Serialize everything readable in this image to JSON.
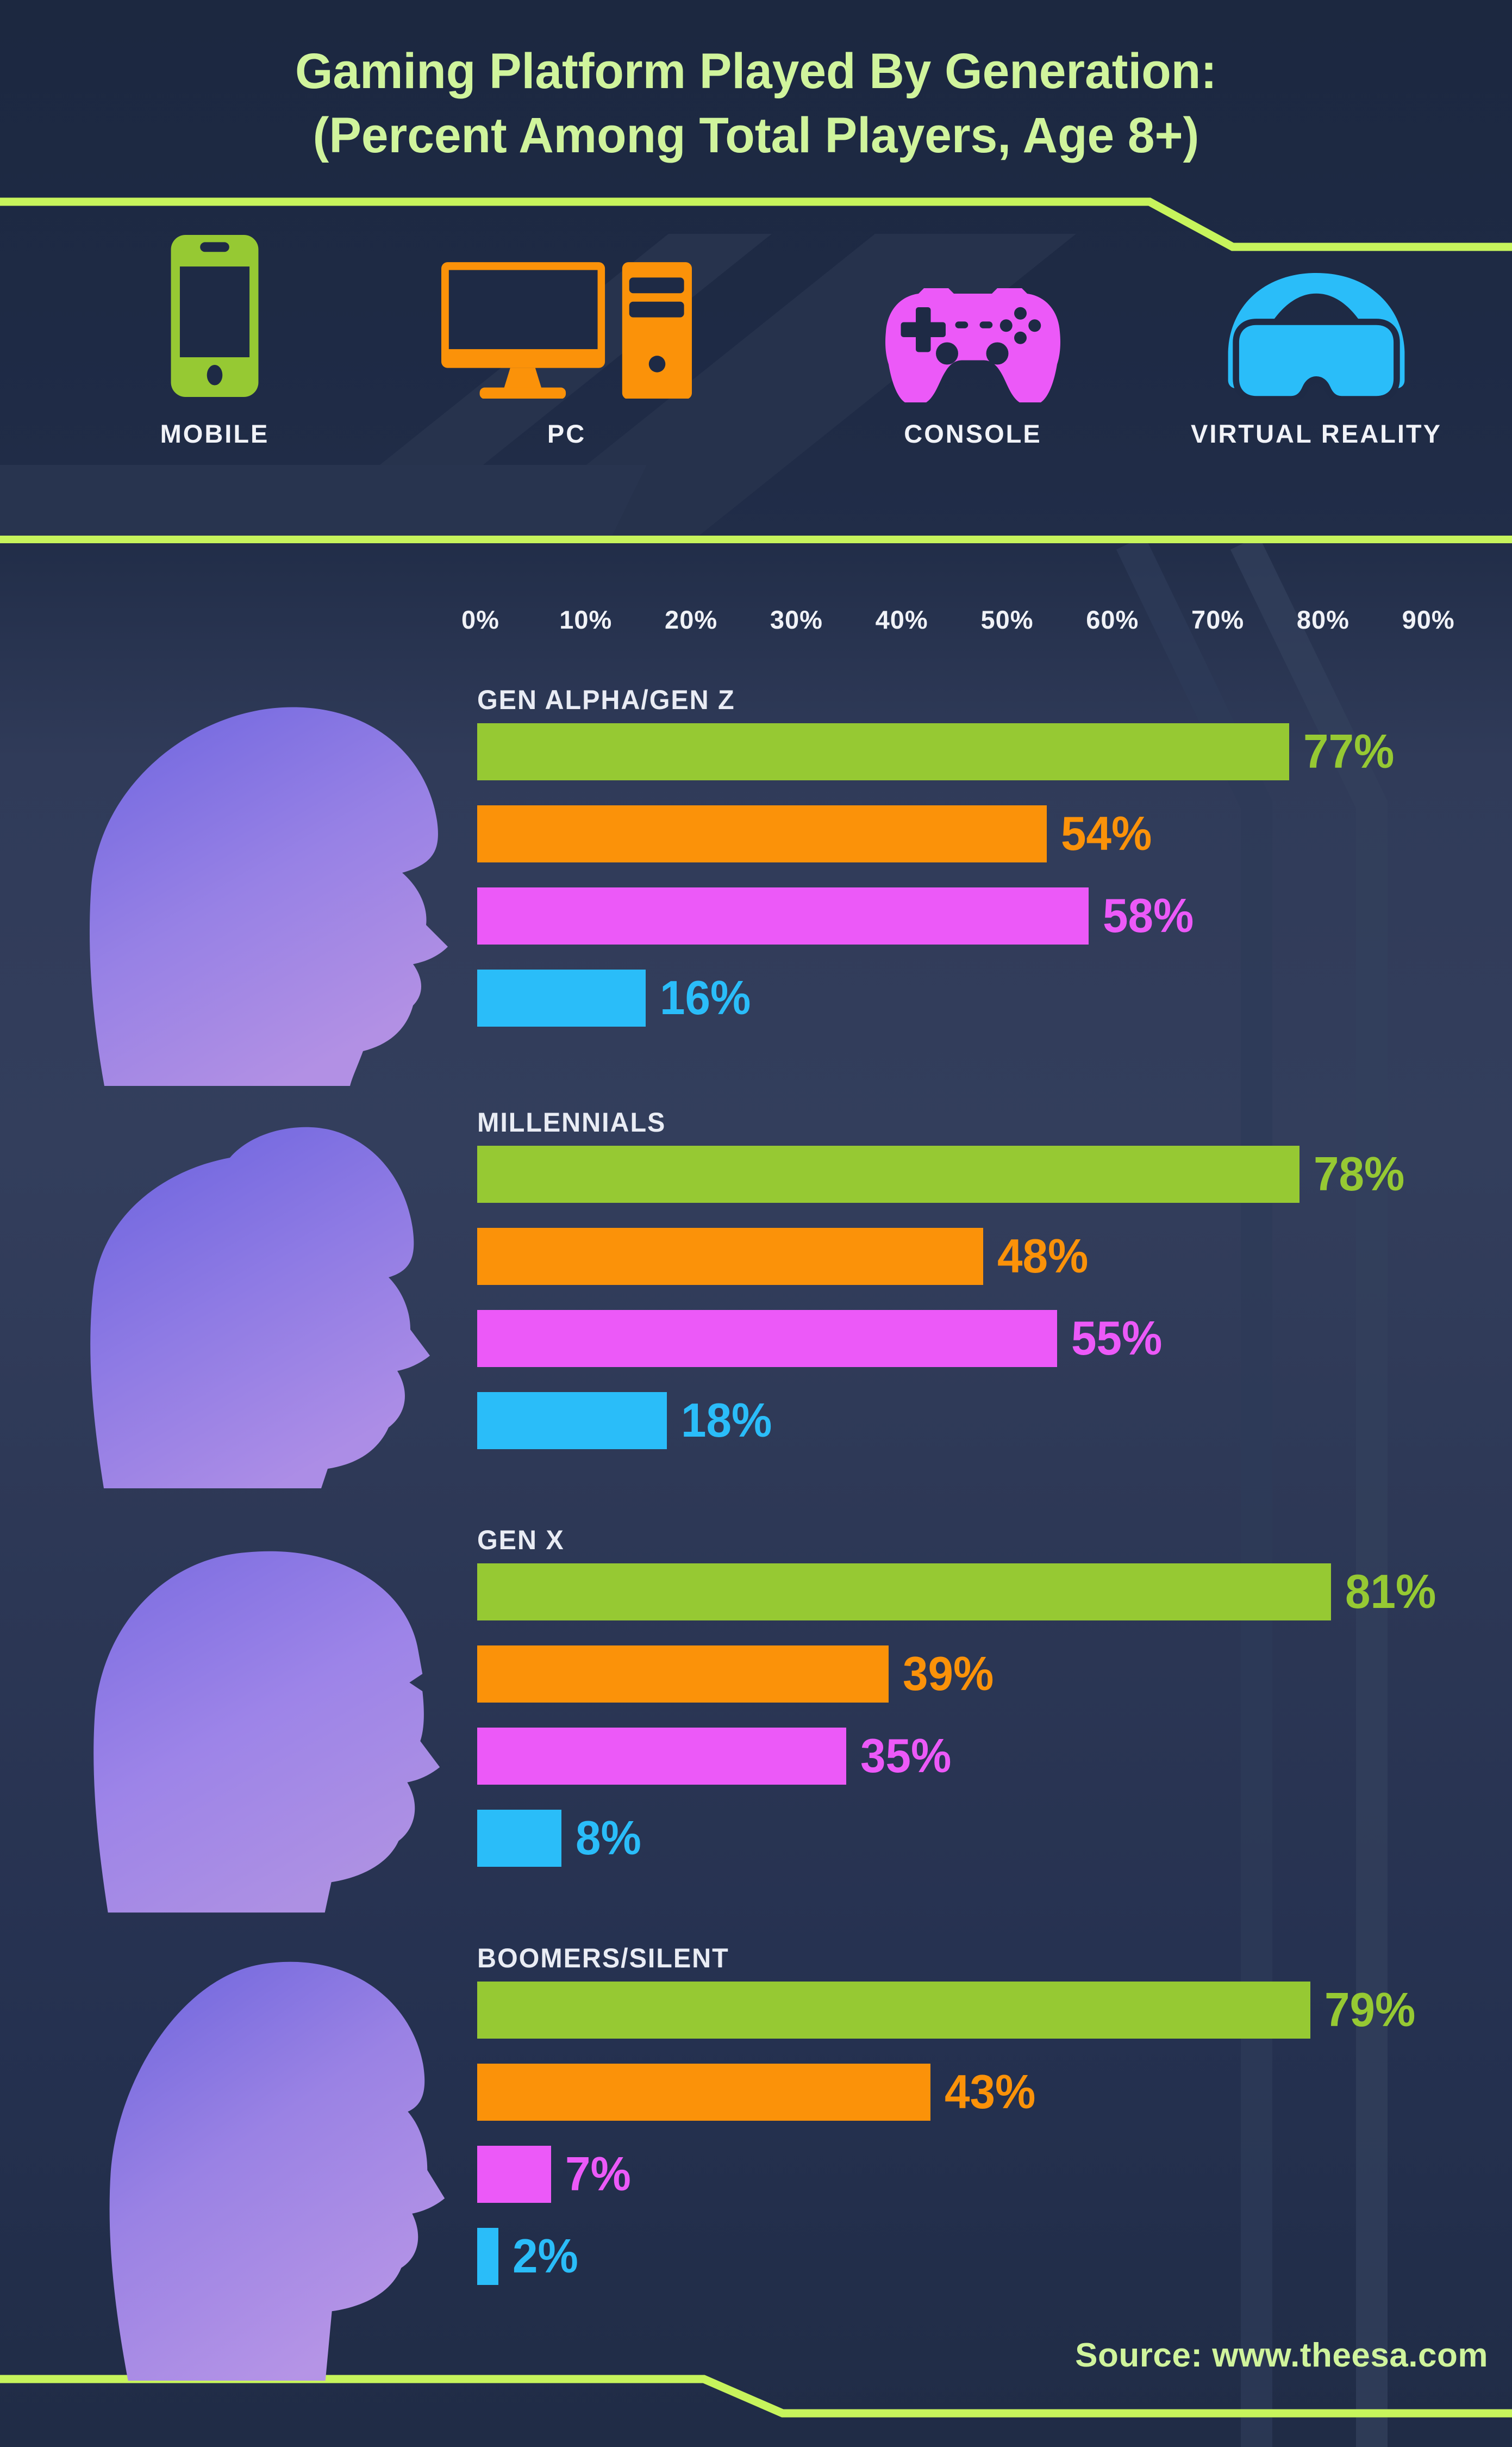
{
  "title": {
    "line1": "Gaming Platform Played By Generation:",
    "line2": "(Percent Among Total Players, Age 8+)"
  },
  "chart_data": {
    "type": "bar",
    "orientation": "horizontal",
    "title": "Gaming Platform Played By Generation: (Percent Among Total Players, Age 8+)",
    "xlabel": "",
    "ylabel": "",
    "xlim": [
      0,
      90
    ],
    "grid": false,
    "legend_position": "top",
    "axis_ticks": [
      "0%",
      "10%",
      "20%",
      "30%",
      "40%",
      "50%",
      "60%",
      "70%",
      "80%",
      "90%"
    ],
    "platforms": [
      {
        "name": "MOBILE",
        "icon": "mobile-phone-icon",
        "color": "#96C933"
      },
      {
        "name": "PC",
        "icon": "desktop-pc-icon",
        "color": "#FB9209"
      },
      {
        "name": "CONSOLE",
        "icon": "gamepad-icon",
        "color": "#EC59F8"
      },
      {
        "name": "VIRTUAL REALITY",
        "icon": "vr-headset-icon",
        "color": "#2ABDF9"
      }
    ],
    "groups": [
      {
        "label": "GEN ALPHA/GEN Z",
        "values": [
          77,
          54,
          58,
          16
        ],
        "value_labels": [
          "77%",
          "54%",
          "58%",
          "16%"
        ]
      },
      {
        "label": "MILLENNIALS",
        "values": [
          78,
          48,
          55,
          18
        ],
        "value_labels": [
          "78%",
          "48%",
          "55%",
          "18%"
        ]
      },
      {
        "label": "GEN X",
        "values": [
          81,
          39,
          35,
          8
        ],
        "value_labels": [
          "81%",
          "39%",
          "35%",
          "8%"
        ]
      },
      {
        "label": "BOOMERS/SILENT",
        "values": [
          79,
          43,
          7,
          2
        ],
        "value_labels": [
          "79%",
          "43%",
          "7%",
          "2%"
        ]
      }
    ]
  },
  "footer": {
    "source": "Source: www.theesa.com"
  },
  "colors": {
    "background": "#1E2A45",
    "accent_line": "#C7F45C",
    "title_text": "#D0F49C",
    "label_text": "#F0F2F7",
    "mobile_green": "#96C933",
    "pc_orange": "#FB9209",
    "console_magenta": "#EC59F8",
    "vr_blue": "#2ABDF9",
    "silhouette_purple_top": "#6E65DF",
    "silhouette_purple_bottom": "#B290E4"
  },
  "icons": [
    "mobile-phone-icon",
    "desktop-pc-icon",
    "gamepad-icon",
    "vr-headset-icon"
  ],
  "decor": {
    "silhouettes": [
      "gen-alpha-gen-z-girl-silhouette",
      "millennials-man-silhouette",
      "gen-x-man-silhouette",
      "boomers-silent-man-silhouette"
    ]
  }
}
